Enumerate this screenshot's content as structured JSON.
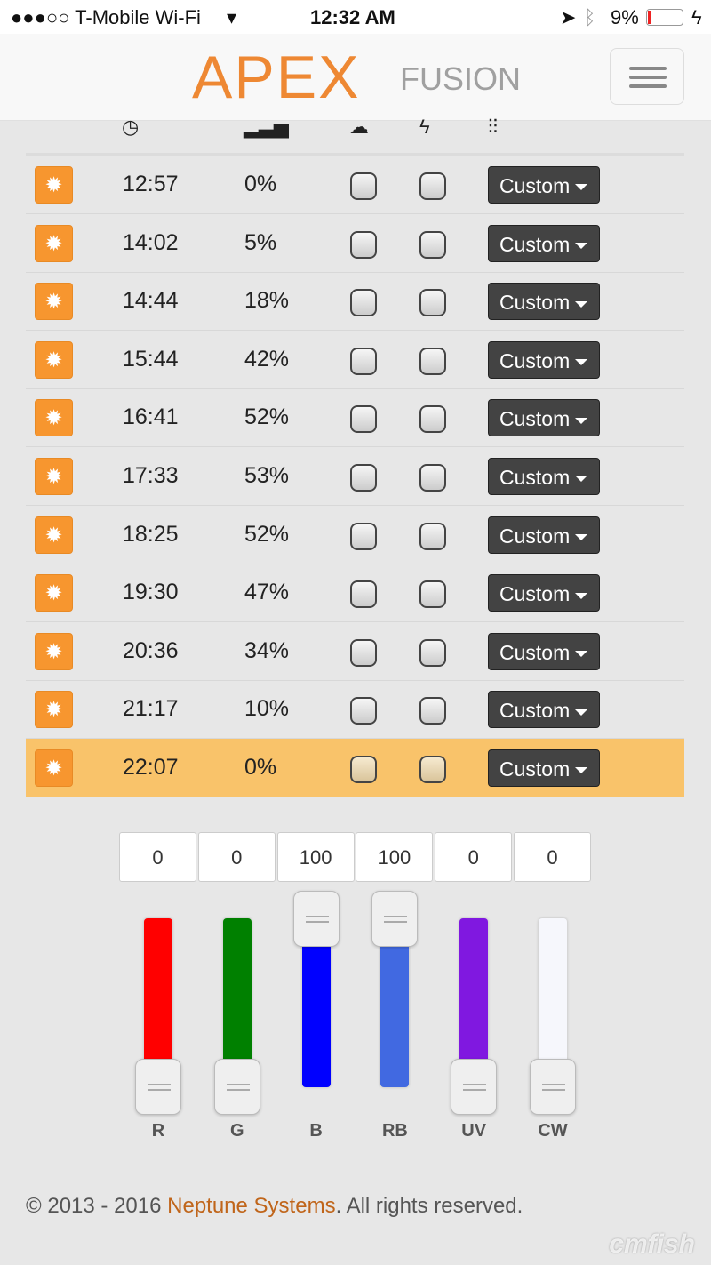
{
  "status_bar": {
    "carrier": "●●●○○ T-Mobile Wi-Fi",
    "time": "12:32 AM",
    "battery": "9%"
  },
  "header": {
    "logo_main": "APEX",
    "logo_sub": "FUSION"
  },
  "columns": {
    "time_icon": "clock-icon",
    "intensity_icon": "signal-bars-icon",
    "cloud_icon": "cloud-icon",
    "lightning_icon": "lightning-icon",
    "profile_icon": "sliders-icon"
  },
  "rows": [
    {
      "time": "12:57",
      "intensity": "0%",
      "profile": "Custom"
    },
    {
      "time": "14:02",
      "intensity": "5%",
      "profile": "Custom"
    },
    {
      "time": "14:44",
      "intensity": "18%",
      "profile": "Custom"
    },
    {
      "time": "15:44",
      "intensity": "42%",
      "profile": "Custom"
    },
    {
      "time": "16:41",
      "intensity": "52%",
      "profile": "Custom"
    },
    {
      "time": "17:33",
      "intensity": "53%",
      "profile": "Custom"
    },
    {
      "time": "18:25",
      "intensity": "52%",
      "profile": "Custom"
    },
    {
      "time": "19:30",
      "intensity": "47%",
      "profile": "Custom"
    },
    {
      "time": "20:36",
      "intensity": "34%",
      "profile": "Custom"
    },
    {
      "time": "21:17",
      "intensity": "10%",
      "profile": "Custom"
    },
    {
      "time": "22:07",
      "intensity": "0%",
      "profile": "Custom",
      "selected": true
    }
  ],
  "channels": [
    {
      "label": "R",
      "value": "0",
      "color": "#ff0000"
    },
    {
      "label": "G",
      "value": "0",
      "color": "#008000"
    },
    {
      "label": "B",
      "value": "100",
      "color": "#0000ff"
    },
    {
      "label": "RB",
      "value": "100",
      "color": "#4169e1"
    },
    {
      "label": "UV",
      "value": "0",
      "color": "#8018e0"
    },
    {
      "label": "CW",
      "value": "0",
      "color": "#f6f7fc"
    }
  ],
  "footer": {
    "prefix": "© 2013 - 2016 ",
    "company": "Neptune Systems",
    "suffix": ". All rights reserved."
  },
  "watermark": "cmfish",
  "colors": {
    "accent": "#f7962f",
    "selected_row": "#f9c36a"
  }
}
